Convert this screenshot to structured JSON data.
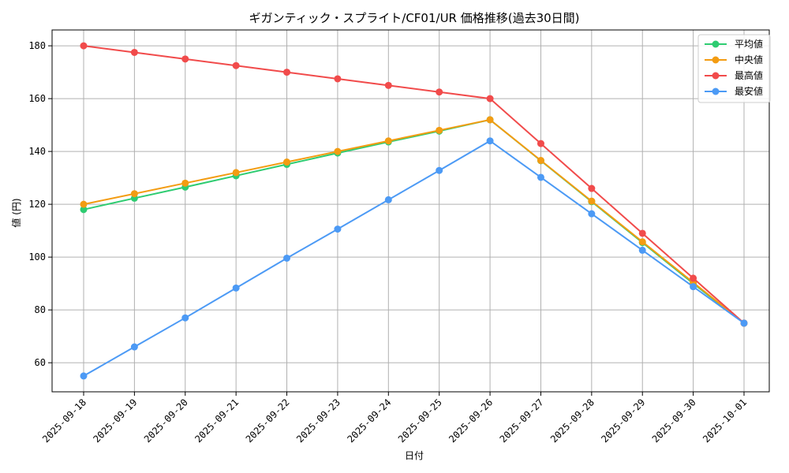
{
  "chart_data": {
    "type": "line",
    "title": "ギガンティック・スプライト/CF01/UR 価格推移(過去30日間)",
    "xlabel": "日付",
    "ylabel": "値 (円)",
    "categories": [
      "2025-09-18",
      "2025-09-19",
      "2025-09-20",
      "2025-09-21",
      "2025-09-22",
      "2025-09-23",
      "2025-09-24",
      "2025-09-25",
      "2025-09-26",
      "2025-09-27",
      "2025-09-28",
      "2025-09-29",
      "2025-09-30",
      "2025-10-01"
    ],
    "ylim": [
      49,
      186
    ],
    "yticks": [
      60,
      80,
      100,
      120,
      140,
      160,
      180
    ],
    "grid": true,
    "legend_position": "top-right",
    "series": [
      {
        "name": "平均値",
        "color": "#2ecc71",
        "values": [
          118,
          122.3,
          126.5,
          130.8,
          135.1,
          139.4,
          143.6,
          147.7,
          152,
          136.5,
          121,
          105.5,
          90,
          75
        ]
      },
      {
        "name": "中央値",
        "color": "#f39c12",
        "values": [
          120,
          124,
          128,
          132,
          136,
          140,
          144,
          148,
          152,
          136.6,
          121.2,
          105.8,
          90.4,
          75
        ]
      },
      {
        "name": "最高値",
        "color": "#f14b4b",
        "values": [
          180,
          177.5,
          175,
          172.5,
          170,
          167.5,
          165,
          162.5,
          160,
          143,
          126,
          109,
          92,
          75
        ]
      },
      {
        "name": "最安値",
        "color": "#4c9af5",
        "values": [
          55,
          66,
          77,
          88.3,
          99.6,
          110.6,
          121.7,
          132.8,
          144,
          130.2,
          116.4,
          102.6,
          88.8,
          75
        ]
      }
    ]
  }
}
